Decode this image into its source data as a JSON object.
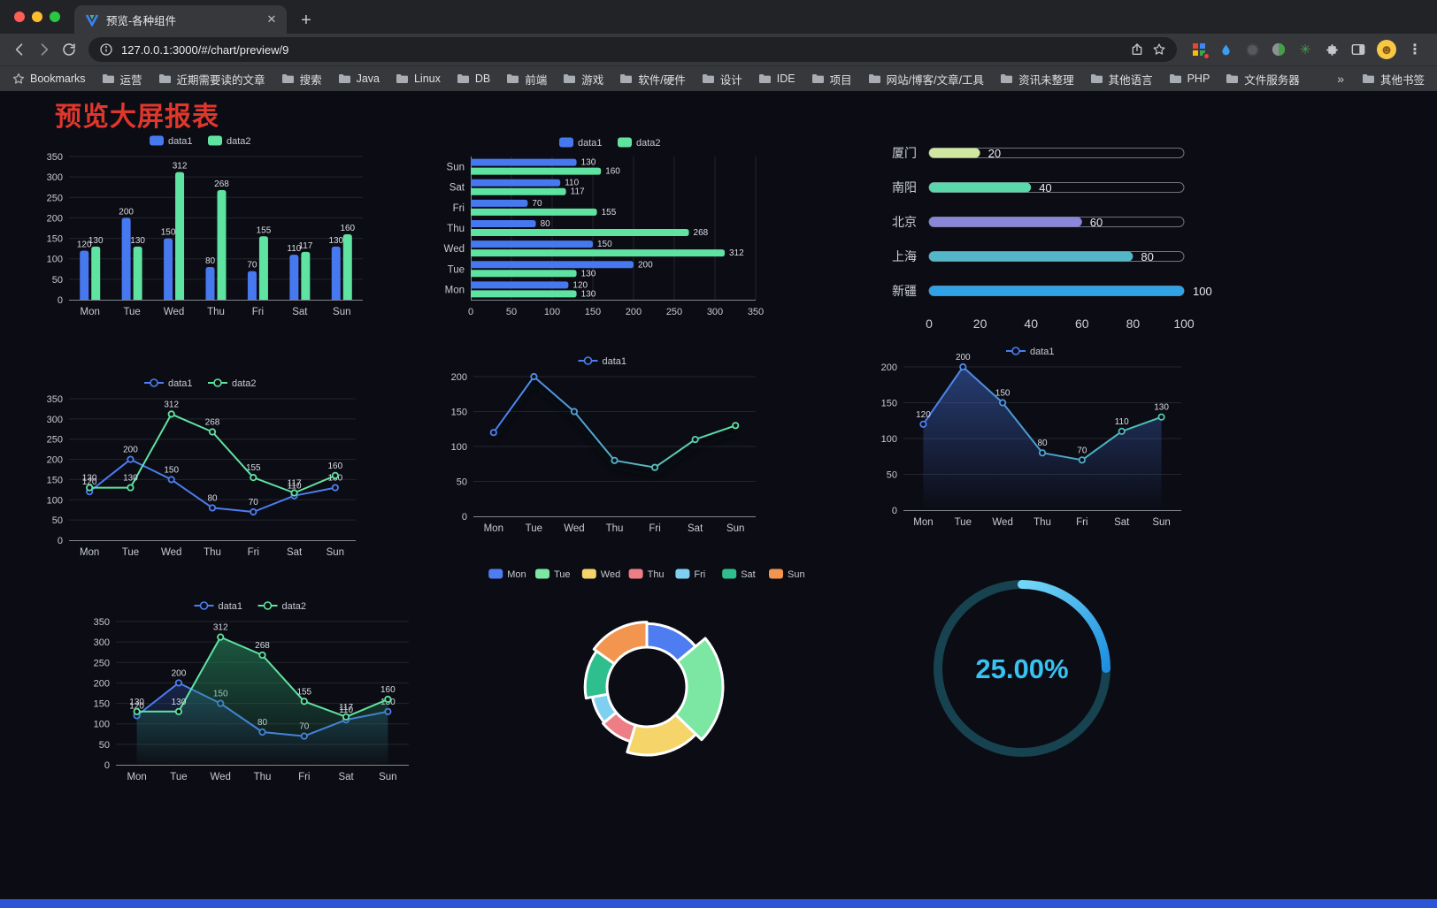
{
  "browser": {
    "tab_title": "预览-各种组件",
    "url": "127.0.0.1:3000/#/chart/preview/9",
    "bookmarks_label": "Bookmarks",
    "bookmarks": [
      "运营",
      "近期需要读的文章",
      "搜索",
      "Java",
      "Linux",
      "DB",
      "前端",
      "游戏",
      "软件/硬件",
      "设计",
      "IDE",
      "项目",
      "网站/博客/文章/工具",
      "资讯未整理",
      "其他语言",
      "PHP",
      "文件服务器"
    ],
    "overflow": "»",
    "other_bookmarks": "其他书签"
  },
  "icons": {
    "new_tab": "+",
    "tab_close": "✕",
    "menu": "⋮",
    "avatar_face": "☻",
    "green_starburst": "✳"
  },
  "page": {
    "title": "预览大屏报表",
    "title_color": "#e0372c",
    "background": "#0c0c14",
    "footer_color": "#2b55d6"
  },
  "chart_data": [
    {
      "type": "bar",
      "legend": [
        "data1",
        "data2"
      ],
      "categories": [
        "Mon",
        "Tue",
        "Wed",
        "Thu",
        "Fri",
        "Sat",
        "Sun"
      ],
      "series": [
        {
          "name": "data1",
          "color": "#4678f0",
          "values": [
            120,
            200,
            150,
            80,
            70,
            110,
            130
          ]
        },
        {
          "name": "data2",
          "color": "#5fe3a1",
          "values": [
            130,
            130,
            312,
            268,
            155,
            117,
            160
          ]
        }
      ],
      "ylim": [
        0,
        350
      ],
      "yticks": [
        0,
        50,
        100,
        150,
        200,
        250,
        300,
        350
      ],
      "show_labels": true
    },
    {
      "type": "hbar",
      "legend": [
        "data1",
        "data2"
      ],
      "categories": [
        "Mon",
        "Tue",
        "Wed",
        "Thu",
        "Fri",
        "Sat",
        "Sun"
      ],
      "series": [
        {
          "name": "data1",
          "color": "#4678f0",
          "values": [
            120,
            200,
            150,
            80,
            70,
            110,
            130
          ]
        },
        {
          "name": "data2",
          "color": "#5fe3a1",
          "values": [
            130,
            130,
            312,
            268,
            155,
            117,
            160
          ]
        }
      ],
      "xlim": [
        0,
        350
      ],
      "xticks": [
        0,
        50,
        100,
        150,
        200,
        250,
        300,
        350
      ],
      "show_labels": true
    },
    {
      "type": "capsule",
      "max": 100,
      "xticks": [
        0,
        20,
        40,
        60,
        80,
        100
      ],
      "rows": [
        {
          "label": "厦门",
          "value": 20,
          "color": "#cfe7a0"
        },
        {
          "label": "南阳",
          "value": 40,
          "color": "#5bd8ab"
        },
        {
          "label": "北京",
          "value": 60,
          "color": "#8a86da"
        },
        {
          "label": "上海",
          "value": 80,
          "color": "#54b6c9"
        },
        {
          "label": "新疆",
          "value": 100,
          "color": "#2fa3e6"
        }
      ]
    },
    {
      "type": "line",
      "legend": [
        "data1",
        "data2"
      ],
      "categories": [
        "Mon",
        "Tue",
        "Wed",
        "Thu",
        "Fri",
        "Sat",
        "Sun"
      ],
      "series": [
        {
          "name": "data1",
          "color": "#4b7ef0",
          "values": [
            120,
            200,
            150,
            80,
            70,
            110,
            130
          ],
          "labels": true
        },
        {
          "name": "data2",
          "color": "#5fe3a1",
          "values": [
            130,
            130,
            312,
            268,
            155,
            117,
            160
          ],
          "labels": true
        }
      ],
      "ylim": [
        0,
        350
      ],
      "yticks": [
        0,
        50,
        100,
        150,
        200,
        250,
        300,
        350
      ]
    },
    {
      "type": "line",
      "legend": [
        "data1"
      ],
      "categories": [
        "Mon",
        "Tue",
        "Wed",
        "Thu",
        "Fri",
        "Sat",
        "Sun"
      ],
      "series": [
        {
          "name": "data1",
          "color": "#4b7ef0",
          "gradient": [
            "#4b7ef0",
            "#5fe3a1"
          ],
          "values": [
            120,
            200,
            150,
            80,
            70,
            110,
            130
          ],
          "labels": false,
          "shadow": true
        }
      ],
      "ylim": [
        0,
        200
      ],
      "yticks": [
        0,
        50,
        100,
        150,
        200
      ]
    },
    {
      "type": "line",
      "legend": [
        "data1"
      ],
      "categories": [
        "Mon",
        "Tue",
        "Wed",
        "Thu",
        "Fri",
        "Sat",
        "Sun"
      ],
      "series": [
        {
          "name": "data1",
          "color": "#4b7ef0",
          "gradient": [
            "#4b7ef0",
            "#4fc3b0"
          ],
          "values": [
            120,
            200,
            150,
            80,
            70,
            110,
            130
          ],
          "labels": true,
          "area": [
            "rgba(64,110,210,0.50)",
            "rgba(64,110,210,0)"
          ]
        }
      ],
      "ylim": [
        0,
        200
      ],
      "yticks": [
        0,
        50,
        100,
        150,
        200
      ]
    },
    {
      "type": "line",
      "legend": [
        "data1",
        "data2"
      ],
      "categories": [
        "Mon",
        "Tue",
        "Wed",
        "Thu",
        "Fri",
        "Sat",
        "Sun"
      ],
      "series": [
        {
          "name": "data1",
          "color": "#4b7ef0",
          "values": [
            120,
            200,
            150,
            80,
            70,
            110,
            130
          ],
          "labels": true,
          "area": [
            "rgba(40,70,140,0.45)",
            "rgba(40,70,140,0)"
          ]
        },
        {
          "name": "data2",
          "color": "#5fe3a1",
          "values": [
            130,
            130,
            312,
            268,
            155,
            117,
            160
          ],
          "labels": true,
          "area": [
            "rgba(40,150,100,0.55)",
            "rgba(40,150,100,0.03)"
          ]
        }
      ],
      "ylim": [
        0,
        350
      ],
      "yticks": [
        0,
        50,
        100,
        150,
        200,
        250,
        300,
        350
      ]
    },
    {
      "type": "pie",
      "legend": [
        "Mon",
        "Tue",
        "Wed",
        "Thu",
        "Fri",
        "Sat",
        "Sun"
      ],
      "categories": [
        "Mon",
        "Tue",
        "Wed",
        "Thu",
        "Fri",
        "Sat",
        "Sun"
      ],
      "values": [
        120,
        200,
        150,
        80,
        70,
        110,
        130
      ],
      "colors": [
        "#4e7df2",
        "#7ce7a2",
        "#f5d56a",
        "#ee7e86",
        "#7fd0f0",
        "#2fbf8e",
        "#f2954e"
      ]
    },
    {
      "type": "gauge",
      "value": 25,
      "label": "25.00%",
      "track_color": "#17424f",
      "progress_colors": [
        "#74d6f7",
        "#1e8fe0"
      ],
      "text_color": "#38c2f2"
    }
  ]
}
